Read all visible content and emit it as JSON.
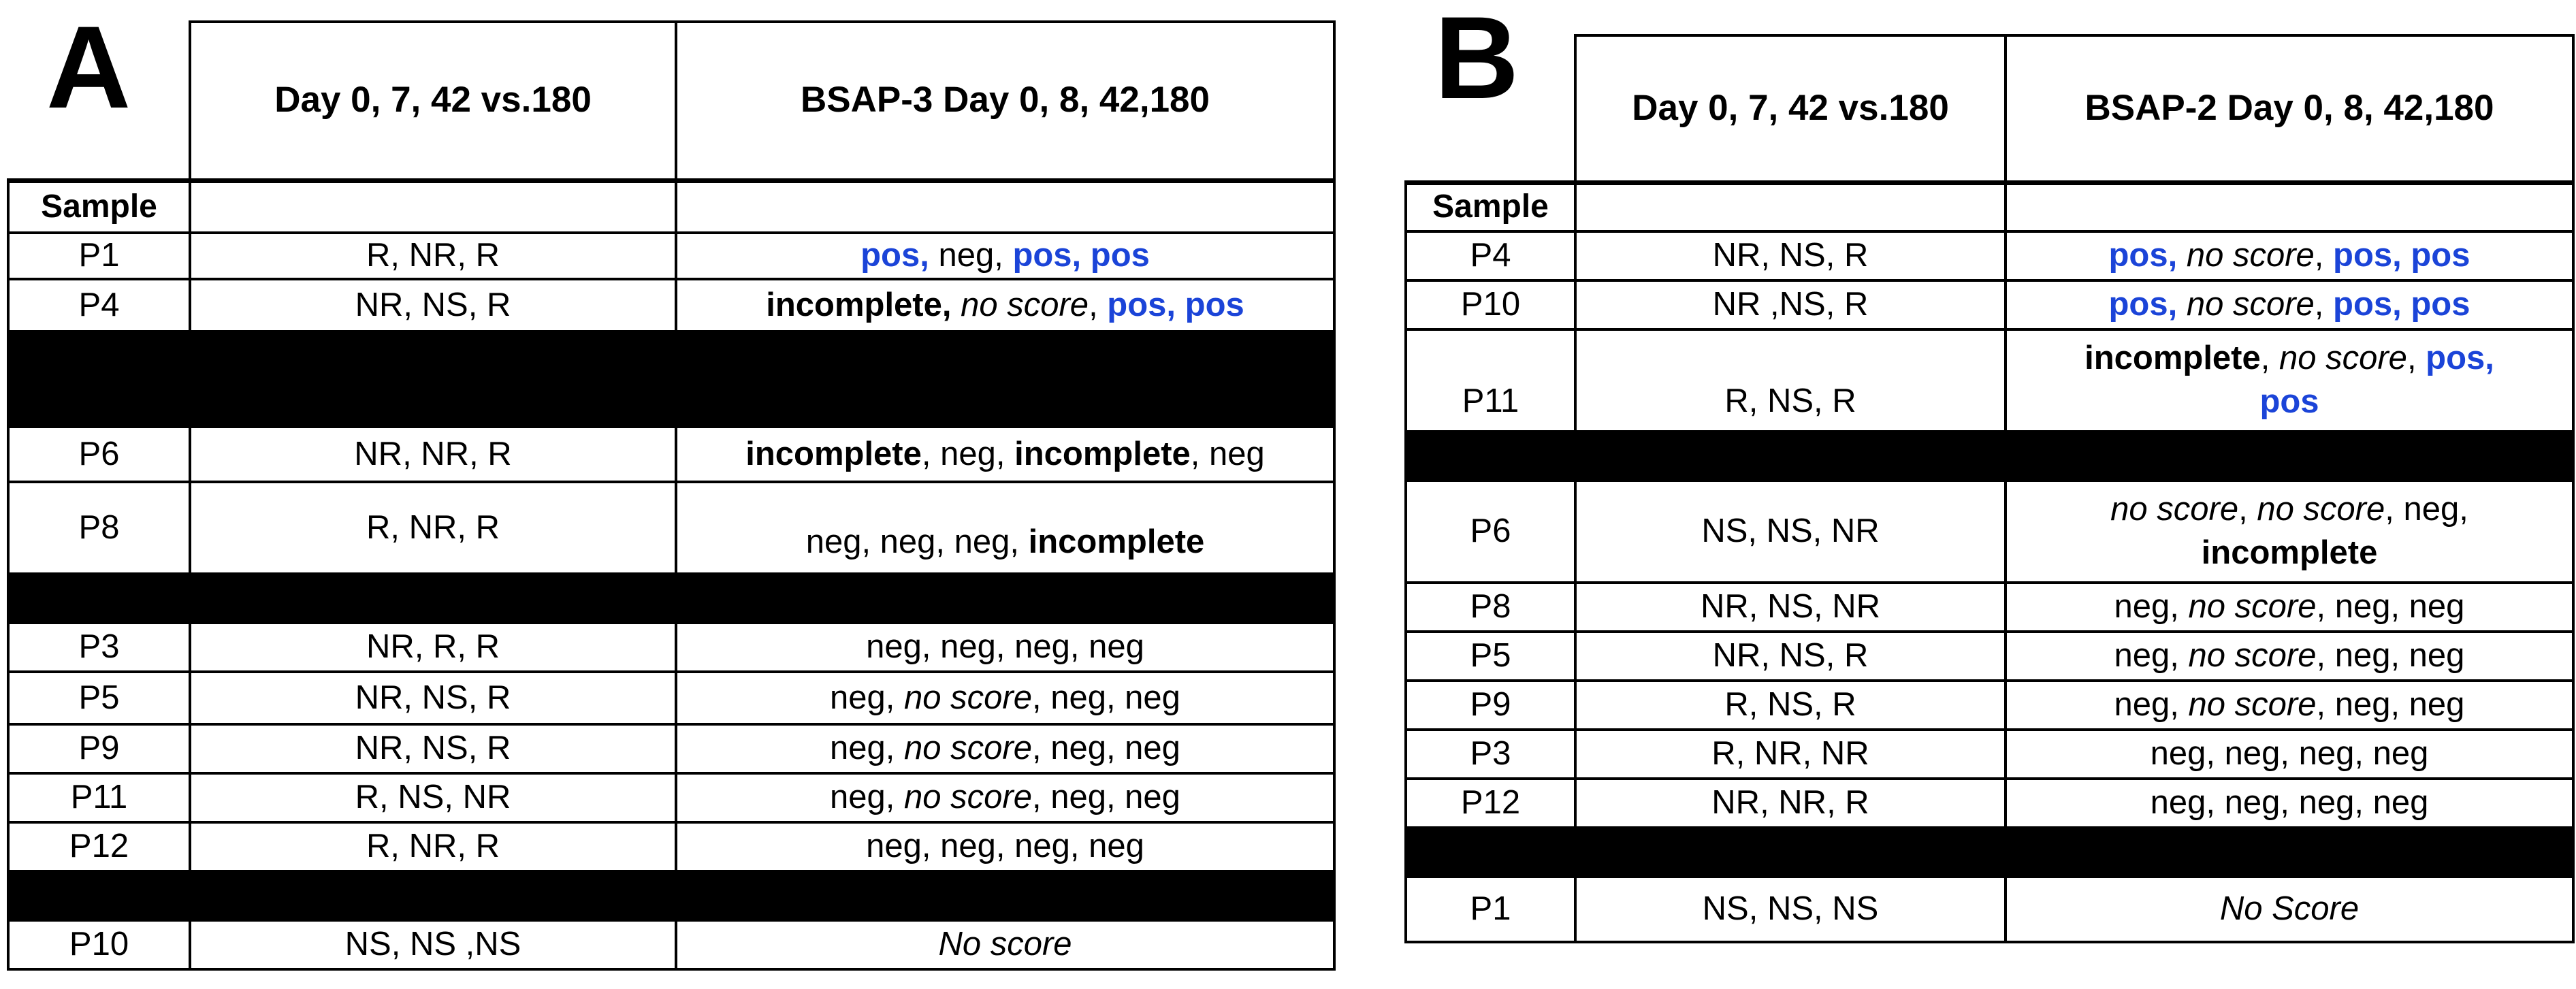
{
  "colors": {
    "positive_blue": "#1B44D8",
    "text_black": "#000000",
    "redaction_black": "#000000",
    "background_white": "#FFFFFF",
    "border_black": "#000000"
  },
  "panels": [
    {
      "name": "panel-a",
      "letter": "A",
      "header": {
        "col2": "Day 0, 7, 42 vs.180",
        "col3": "BSAP-3 Day 0, 8, 42,180"
      },
      "sample_label": "Sample",
      "rows": [
        {
          "type": "data",
          "size": "s",
          "sample": "P1",
          "days": "R, NR, R",
          "result": [
            {
              "t": "pos,",
              "s": "bb"
            },
            {
              "t": " neg, ",
              "s": "n"
            },
            {
              "t": "pos, pos",
              "s": "bb"
            }
          ]
        },
        {
          "type": "data",
          "size": "ml",
          "sample": "P4",
          "days": "NR, NS, R",
          "result": [
            {
              "t": "incomplete,",
              "s": "b"
            },
            {
              "t": " ",
              "s": "n"
            },
            {
              "t": "no score",
              "s": "i"
            },
            {
              "t": ", ",
              "s": "n"
            },
            {
              "t": "pos, pos",
              "s": "bb"
            }
          ]
        },
        {
          "type": "bar",
          "size": "barxl"
        },
        {
          "type": "data",
          "size": "l",
          "sample": "P6",
          "days": "NR, NR, R",
          "result": [
            {
              "t": "incomplete",
              "s": "b"
            },
            {
              "t": ", neg, ",
              "s": "n"
            },
            {
              "t": "incomplete",
              "s": "b"
            },
            {
              "t": ", neg",
              "s": "n"
            }
          ]
        },
        {
          "type": "data",
          "size": "xl",
          "sample": "P8",
          "days": "R, NR, R",
          "result_valign": "bottom",
          "result": [
            {
              "t": "neg, neg, neg, ",
              "s": "n"
            },
            {
              "t": "incomplete",
              "s": "b"
            }
          ]
        },
        {
          "type": "bar",
          "size": "m"
        },
        {
          "type": "data",
          "size": "m",
          "sample": "P3",
          "days": "NR, R, R",
          "result": [
            {
              "t": "neg, neg, neg, neg",
              "s": "n"
            }
          ]
        },
        {
          "type": "data",
          "size": "ml",
          "sample": "P5",
          "days": "NR, NS, R",
          "result": [
            {
              "t": "neg, ",
              "s": "n"
            },
            {
              "t": "no score",
              "s": "i"
            },
            {
              "t": ", neg, neg",
              "s": "n"
            }
          ]
        },
        {
          "type": "data",
          "size": "m",
          "sample": "P9",
          "days": "NR, NS, R",
          "result": [
            {
              "t": "neg, ",
              "s": "n"
            },
            {
              "t": "no score",
              "s": "i"
            },
            {
              "t": ", neg, neg",
              "s": "n"
            }
          ]
        },
        {
          "type": "data",
          "size": "m",
          "sample": "P11",
          "days": "R, NS, NR",
          "result": [
            {
              "t": "neg, ",
              "s": "n"
            },
            {
              "t": "no score",
              "s": "i"
            },
            {
              "t": ", neg, neg",
              "s": "n"
            }
          ]
        },
        {
          "type": "data",
          "size": "m",
          "sample": "P12",
          "days": "R, NR, R",
          "result": [
            {
              "t": "neg, neg, neg, neg",
              "s": "n"
            }
          ]
        },
        {
          "type": "bar",
          "size": "m"
        },
        {
          "type": "data",
          "size": "m",
          "sample": "P10",
          "days": "NS, NS ,NS",
          "result": [
            {
              "t": "No score",
              "s": "i"
            }
          ]
        }
      ]
    },
    {
      "name": "panel-b",
      "letter": "B",
      "header": {
        "col2": "Day 0, 7, 42 vs.180",
        "col3": "BSAP-2 Day 0, 8, 42,180"
      },
      "sample_label": "Sample",
      "rows": [
        {
          "type": "data",
          "size": "m",
          "sample": "P4",
          "days": "NR, NS, R",
          "result": [
            {
              "t": "pos,",
              "s": "bb"
            },
            {
              "t": " ",
              "s": "n"
            },
            {
              "t": "no score",
              "s": "i"
            },
            {
              "t": ", ",
              "s": "n"
            },
            {
              "t": "pos, pos",
              "s": "bb"
            }
          ]
        },
        {
          "type": "data",
          "size": "m",
          "sample": "P10",
          "days": "NR ,NS, R",
          "result": [
            {
              "t": "pos,",
              "s": "bb"
            },
            {
              "t": " ",
              "s": "n"
            },
            {
              "t": "no score",
              "s": "i"
            },
            {
              "t": ", ",
              "s": "n"
            },
            {
              "t": "pos, pos",
              "s": "bb"
            }
          ]
        },
        {
          "type": "data",
          "size": "xl2",
          "sample": "P11",
          "days": "R, NS, R",
          "label_valign": "bottom",
          "result": [
            {
              "t": "incomplete",
              "s": "b"
            },
            {
              "t": ", ",
              "s": "n"
            },
            {
              "t": "no score",
              "s": "i"
            },
            {
              "t": ", ",
              "s": "n"
            },
            {
              "t": "pos,",
              "s": "bb"
            },
            {
              "br": true
            },
            {
              "t": "pos",
              "s": "bb"
            }
          ]
        },
        {
          "type": "bar",
          "size": "m"
        },
        {
          "type": "data",
          "size": "xl2",
          "sample": "P6",
          "days": "NS, NS, NR",
          "result": [
            {
              "t": "no score",
              "s": "i"
            },
            {
              "t": ", ",
              "s": "n"
            },
            {
              "t": "no score",
              "s": "i"
            },
            {
              "t": ", neg,",
              "s": "n"
            },
            {
              "br": true
            },
            {
              "t": "incomplete",
              "s": "b"
            }
          ]
        },
        {
          "type": "data",
          "size": "m",
          "sample": "P8",
          "days": "NR, NS, NR",
          "result": [
            {
              "t": "neg, ",
              "s": "n"
            },
            {
              "t": "no score",
              "s": "i"
            },
            {
              "t": ", neg, neg",
              "s": "n"
            }
          ]
        },
        {
          "type": "data",
          "size": "m",
          "sample": "P5",
          "days": "NR, NS, R",
          "result": [
            {
              "t": "neg, ",
              "s": "n"
            },
            {
              "t": "no score",
              "s": "i"
            },
            {
              "t": ", neg, neg",
              "s": "n"
            }
          ]
        },
        {
          "type": "data",
          "size": "m",
          "sample": "P9",
          "days": "R, NS, R",
          "result": [
            {
              "t": "neg, ",
              "s": "n"
            },
            {
              "t": "no score",
              "s": "i"
            },
            {
              "t": ", neg, neg",
              "s": "n"
            }
          ]
        },
        {
          "type": "data",
          "size": "m",
          "sample": "P3",
          "days": "R, NR, NR",
          "result": [
            {
              "t": "neg, neg, neg, neg",
              "s": "n"
            }
          ]
        },
        {
          "type": "data",
          "size": "m",
          "sample": "P12",
          "days": "NR, NR, R",
          "result": [
            {
              "t": "neg, neg, neg, neg",
              "s": "n"
            }
          ]
        },
        {
          "type": "bar",
          "size": "m"
        },
        {
          "type": "data",
          "size": "l2",
          "sample": "P1",
          "days": "NS, NS, NS",
          "result": [
            {
              "t": "No Score",
              "s": "i"
            }
          ]
        }
      ]
    }
  ]
}
